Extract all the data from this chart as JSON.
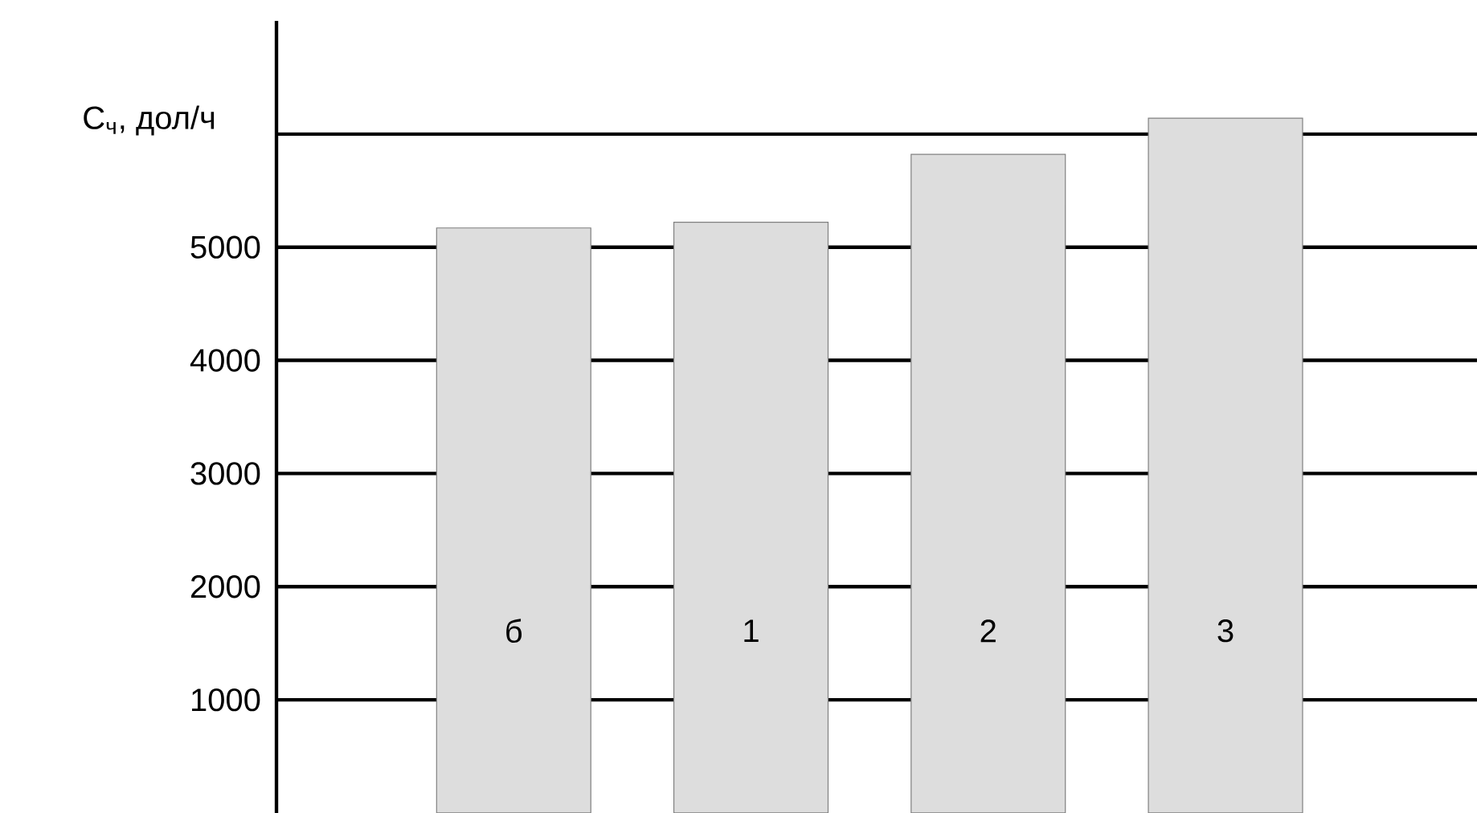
{
  "chart_data": {
    "type": "bar",
    "ylabel": "C$_{ч}$, дол/ч",
    "categories": [
      "б",
      "1",
      "2",
      "3"
    ],
    "values": [
      5170,
      5220,
      5820,
      6140
    ],
    "color": "#dddddd",
    "ylim": [
      0,
      7000
    ],
    "yticks": [
      1000,
      2000,
      3000,
      4000,
      5000,
      {
        "value": 6000,
        "label": null
      }
    ],
    "grid": "y"
  }
}
